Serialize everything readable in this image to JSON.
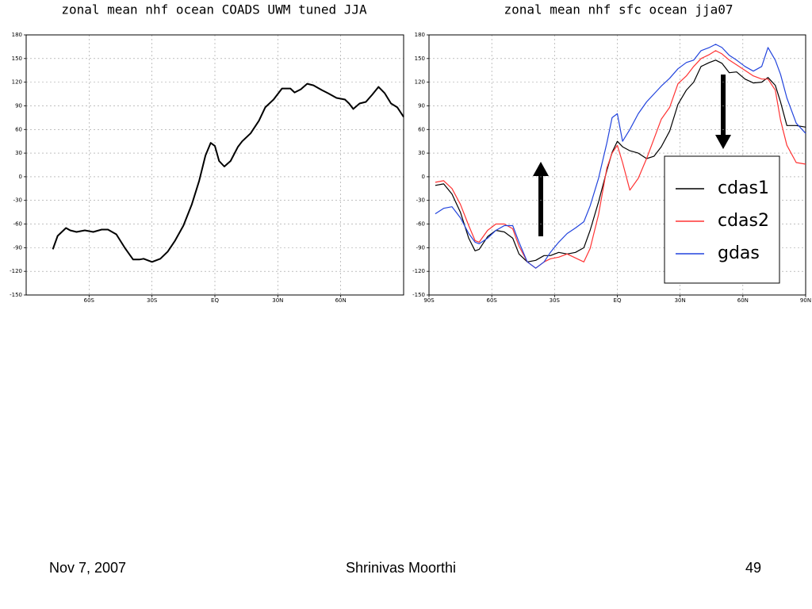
{
  "chart_data": [
    {
      "type": "line",
      "title": "zonal mean nhf ocean COADS UWM tuned JJA",
      "x": [
        -77.3,
        -75,
        -71,
        -69,
        -66,
        -62,
        -58,
        -54,
        -51,
        -47,
        -43,
        -39,
        -36,
        -34,
        -30,
        -26,
        -22.5,
        -19,
        -15,
        -11,
        -7.5,
        -4.5,
        -2,
        0,
        2,
        4.5,
        7.5,
        11,
        13,
        17,
        21,
        24,
        28,
        32,
        36,
        38,
        41,
        44,
        47,
        51,
        54,
        58,
        62,
        64,
        66,
        69,
        72,
        75,
        78,
        81,
        84,
        87,
        90
      ],
      "values": [
        -92,
        -75,
        -65,
        -68,
        -70,
        -68,
        -70,
        -67,
        -67,
        -73,
        -90,
        -105,
        -105,
        -104,
        -108,
        -104,
        -95,
        -81,
        -62,
        -35,
        -5,
        27,
        43,
        39,
        20,
        13,
        20,
        38,
        45,
        55,
        71,
        88,
        98,
        112,
        112,
        107,
        111,
        118,
        116,
        110,
        106,
        100,
        98,
        93,
        86,
        93,
        95,
        104,
        114,
        106,
        93,
        88,
        76
      ],
      "color": "#000000",
      "xlim": [
        -90,
        90
      ],
      "xticks": [
        {
          "value": -60,
          "label": "60S"
        },
        {
          "value": -30,
          "label": "30S"
        },
        {
          "value": 0,
          "label": "EQ"
        },
        {
          "value": 30,
          "label": "30N"
        },
        {
          "value": 60,
          "label": "60N"
        }
      ],
      "ylim": [
        -150,
        180
      ],
      "yticks": [
        -150,
        -120,
        -90,
        -60,
        -30,
        0,
        30,
        60,
        90,
        120,
        150,
        180
      ],
      "grid": true
    },
    {
      "type": "line",
      "title": "zonal mean nhf sfc ocean jja07",
      "x": [
        -87,
        -83,
        -79,
        -75,
        -71,
        -68,
        -66,
        -62,
        -58,
        -54,
        -50,
        -47,
        -43,
        -39,
        -35,
        -32,
        -28,
        -24,
        -20,
        -16,
        -13,
        -9,
        -5,
        -2.5,
        0,
        2.5,
        6,
        10,
        14,
        17.5,
        21,
        25,
        29,
        33,
        36.5,
        40,
        44,
        47,
        50,
        53.5,
        57,
        61,
        65,
        69,
        72,
        75.5,
        78,
        81,
        85.5,
        90
      ],
      "series": [
        {
          "name": "cdas1",
          "color": "#000000",
          "values": [
            -11,
            -9,
            -22,
            -45,
            -78,
            -94,
            -92,
            -76,
            -68,
            -70,
            -78,
            -98,
            -108,
            -106,
            -100,
            -100,
            -96,
            -98,
            -96,
            -90,
            -68,
            -32,
            8,
            31,
            45,
            38,
            33,
            30,
            23,
            26,
            38,
            58,
            92,
            110,
            120,
            140,
            145,
            148,
            144,
            132,
            133,
            124,
            119,
            120,
            126,
            116,
            95,
            65,
            65,
            63
          ]
        },
        {
          "name": "cdas2",
          "color": "#ff3333",
          "values": [
            -7,
            -5,
            -15,
            -35,
            -62,
            -81,
            -83,
            -68,
            -60,
            -60,
            -66,
            -88,
            -108,
            -116,
            -108,
            -104,
            -102,
            -98,
            -103,
            -108,
            -91,
            -48,
            11,
            30,
            40,
            18,
            -17,
            -2,
            23,
            48,
            73,
            88,
            118,
            128,
            140,
            150,
            155,
            160,
            156,
            148,
            142,
            135,
            128,
            124,
            124,
            110,
            72,
            40,
            18,
            16
          ]
        },
        {
          "name": "gdas",
          "color": "#2244dd",
          "values": [
            -47,
            -40,
            -38,
            -52,
            -72,
            -83,
            -85,
            -78,
            -68,
            -62,
            -62,
            -83,
            -108,
            -116,
            -108,
            -96,
            -83,
            -72,
            -65,
            -57,
            -37,
            -2,
            43,
            75,
            80,
            45,
            60,
            80,
            95,
            105,
            115,
            125,
            137,
            145,
            148,
            160,
            164,
            168,
            164,
            154,
            148,
            140,
            134,
            140,
            164,
            148,
            130,
            100,
            68,
            55
          ]
        }
      ],
      "xlim": [
        -90,
        90
      ],
      "xticks": [
        {
          "value": -90,
          "label": "90S"
        },
        {
          "value": -60,
          "label": "60S"
        },
        {
          "value": -30,
          "label": "30S"
        },
        {
          "value": 0,
          "label": "EQ"
        },
        {
          "value": 30,
          "label": "30N"
        },
        {
          "value": 60,
          "label": "60N"
        },
        {
          "value": 90,
          "label": "90N"
        }
      ],
      "ylim": [
        -150,
        180
      ],
      "yticks": [
        -150,
        -120,
        -90,
        -60,
        -30,
        0,
        30,
        60,
        90,
        120,
        150,
        180
      ],
      "grid": true,
      "legend": "right"
    }
  ],
  "footer": {
    "date": "Nov 7, 2007",
    "author": "Shrinivas Moorthi",
    "page": "49"
  }
}
